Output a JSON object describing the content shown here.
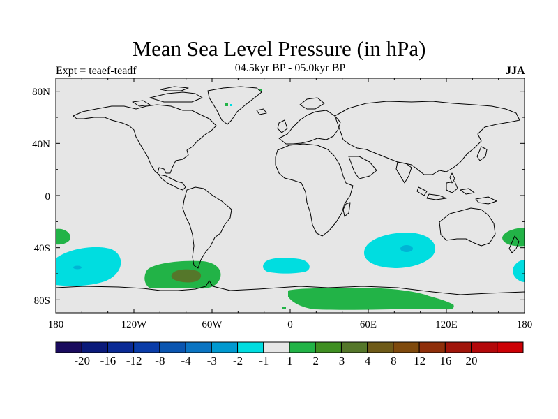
{
  "title": "Mean Sea Level Pressure (in hPa)",
  "subtitle": "04.5kyr BP - 05.0kyr BP",
  "experiment_label": "Expt = teaef-teadf",
  "season": "JJA",
  "axes": {
    "y_ticks": [
      "80N",
      "40N",
      "0",
      "40S",
      "80S"
    ],
    "x_ticks": [
      "180",
      "120W",
      "60W",
      "0",
      "60E",
      "120E",
      "180"
    ]
  },
  "colors": {
    "background_land_ocean": "#e6e6e6",
    "coastline": "#000000",
    "neg_1_to_neg_2": "#00dde0",
    "neg_2_to_neg_3": "#00b4d5",
    "pos_1_to_2": "#22b347",
    "pos_2_to_3": "#3f8f22",
    "pos_3_to_4": "#55772a"
  },
  "colorbar": {
    "colors": [
      "#1a0b5e",
      "#0a1a7a",
      "#0a2a95",
      "#0a3ca8",
      "#0a55b0",
      "#0a74c2",
      "#0099d0",
      "#00dde0",
      "#e6e6e6",
      "#22b347",
      "#3f8f22",
      "#55772a",
      "#6e5a18",
      "#7f4a0d",
      "#8f2f0a",
      "#a0150a",
      "#b3080a",
      "#cc0005"
    ],
    "labels": [
      "-20",
      "-16",
      "-12",
      "-8",
      "-4",
      "-3",
      "-2",
      "-1",
      "1",
      "2",
      "3",
      "4",
      "8",
      "12",
      "16",
      "20"
    ]
  },
  "chart_data": {
    "type": "heatmap",
    "title": "Mean Sea Level Pressure (in hPa)",
    "subtitle": "04.5kyr BP - 05.0kyr BP",
    "field": "MSLP difference teaef - teadf, JJA",
    "lon_range": [
      -180,
      180
    ],
    "lat_range": [
      -90,
      90
    ],
    "contour_levels": [
      -20,
      -16,
      -12,
      -8,
      -4,
      -3,
      -2,
      -1,
      1,
      2,
      3,
      4,
      8,
      12,
      16,
      20
    ],
    "anomaly_regions": [
      {
        "name": "south-pacific-west-negative",
        "lon": [
          -180,
          -140
        ],
        "lat": [
          -64,
          -36
        ],
        "min_value": -2
      },
      {
        "name": "south-pacific-east-positive",
        "lon": [
          -95,
          -55
        ],
        "lat": [
          -72,
          -50
        ],
        "max_value": 3
      },
      {
        "name": "south-atlantic-negative",
        "lon": [
          -20,
          15
        ],
        "lat": [
          -56,
          -44
        ],
        "min_value": -1
      },
      {
        "name": "south-indian-negative",
        "lon": [
          60,
          115
        ],
        "lat": [
          -56,
          -28
        ],
        "min_value": -2
      },
      {
        "name": "antarctic-positive",
        "lon": [
          0,
          130
        ],
        "lat": [
          -90,
          -70
        ],
        "max_value": 2
      },
      {
        "name": "southwest-pacific-positive",
        "lon": [
          160,
          180
        ],
        "lat": [
          -40,
          -24
        ],
        "max_value": 2
      },
      {
        "name": "south-pacific-dateline-negative",
        "lon": [
          170,
          180
        ],
        "lat": [
          -60,
          -46
        ],
        "min_value": -1
      },
      {
        "name": "west-pacific-positive",
        "lon": [
          -180,
          -170
        ],
        "lat": [
          -40,
          -28
        ],
        "max_value": 2
      }
    ]
  }
}
